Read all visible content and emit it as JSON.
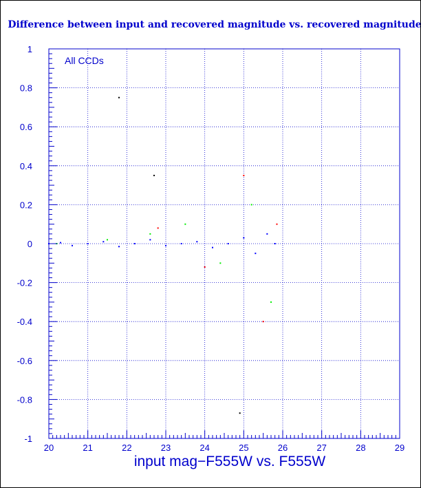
{
  "chart_data": {
    "type": "scatter",
    "title": "Difference between input and recovered magnitude vs. recovered magnitude",
    "xlabel": "input mag−F555W vs. F555W",
    "ylabel": "",
    "annotation": "All CCDs",
    "xlim": [
      20,
      29
    ],
    "ylim": [
      -1,
      1
    ],
    "x_ticks": [
      "20",
      "21",
      "22",
      "23",
      "24",
      "25",
      "26",
      "27",
      "28",
      "29"
    ],
    "y_ticks": [
      "-1",
      "-0.8",
      "-0.6",
      "-0.4",
      "-0.2",
      "0",
      "0.2",
      "0.4",
      "0.6",
      "0.8",
      "1"
    ],
    "grid": true,
    "series": [
      {
        "color": "#0000ff",
        "x": [
          20.0,
          20.3,
          20.6,
          21.0,
          21.4,
          21.8,
          22.2,
          22.6,
          23.0,
          23.4,
          23.8,
          24.2,
          24.6,
          25.0,
          25.3,
          25.6,
          25.8
        ],
        "y": [
          0.0,
          0.005,
          -0.01,
          0.0,
          0.01,
          -0.015,
          0.0,
          0.02,
          -0.01,
          0.0,
          0.01,
          -0.02,
          0.0,
          0.03,
          -0.05,
          0.05,
          0.0
        ]
      },
      {
        "color": "#00ee00",
        "x": [
          20.2,
          21.5,
          22.6,
          23.5,
          24.4,
          25.2,
          25.7
        ],
        "y": [
          0.0,
          0.02,
          0.05,
          0.1,
          -0.1,
          0.2,
          -0.3
        ]
      },
      {
        "color": "#ff0000",
        "x": [
          22.8,
          24.0,
          25.0,
          25.5,
          25.85
        ],
        "y": [
          0.08,
          -0.12,
          0.35,
          -0.4,
          0.1
        ]
      },
      {
        "color": "#000000",
        "x": [
          21.8,
          22.7,
          24.9
        ],
        "y": [
          0.75,
          0.35,
          -0.87
        ]
      }
    ]
  }
}
